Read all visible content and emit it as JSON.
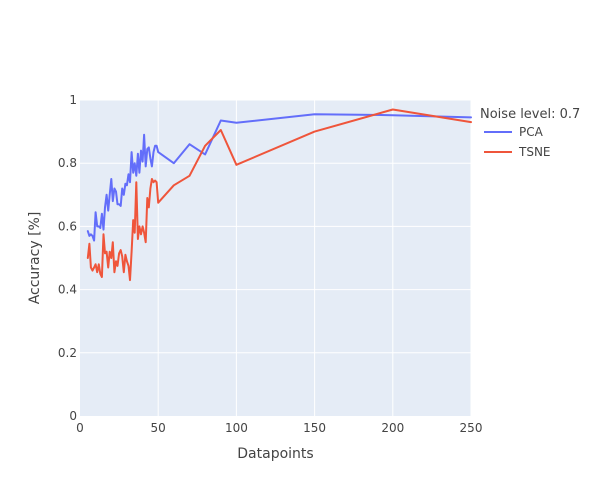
{
  "chart_data": {
    "type": "line",
    "title": "",
    "xlabel": "Datapoints",
    "ylabel": "Accuracy [%]",
    "xlim": [
      0,
      250
    ],
    "ylim": [
      0,
      1
    ],
    "x_ticks": [
      0,
      50,
      100,
      150,
      200,
      250
    ],
    "y_ticks": [
      0,
      0.2,
      0.4,
      0.6,
      0.8,
      1
    ],
    "x_tick_labels": [
      "0",
      "50",
      "100",
      "150",
      "200",
      "250"
    ],
    "y_tick_labels": [
      "0",
      "0.2",
      "0.4",
      "0.6",
      "0.8",
      "1"
    ],
    "grid": true,
    "background_color": "#E5ECF6",
    "legend": {
      "title": "Noise level: 0.7",
      "placement": "right"
    },
    "series": [
      {
        "name": "PCA",
        "color": "#636EFA",
        "x": [
          5,
          6,
          7,
          8,
          9,
          10,
          11,
          12,
          13,
          14,
          15,
          16,
          17,
          18,
          19,
          20,
          21,
          22,
          23,
          24,
          25,
          26,
          27,
          28,
          29,
          30,
          31,
          32,
          33,
          34,
          35,
          36,
          37,
          38,
          39,
          40,
          41,
          42,
          43,
          44,
          45,
          46,
          47,
          48,
          49,
          50,
          60,
          70,
          80,
          90,
          100,
          150,
          200,
          250
        ],
        "y": [
          0.585,
          0.57,
          0.575,
          0.57,
          0.555,
          0.645,
          0.6,
          0.6,
          0.595,
          0.64,
          0.59,
          0.66,
          0.7,
          0.65,
          0.7,
          0.75,
          0.68,
          0.72,
          0.71,
          0.67,
          0.67,
          0.665,
          0.72,
          0.7,
          0.735,
          0.73,
          0.765,
          0.74,
          0.835,
          0.77,
          0.8,
          0.76,
          0.83,
          0.77,
          0.84,
          0.805,
          0.89,
          0.79,
          0.845,
          0.85,
          0.815,
          0.79,
          0.835,
          0.855,
          0.855,
          0.835,
          0.8,
          0.86,
          0.828,
          0.935,
          0.928,
          0.955,
          0.952,
          0.945
        ]
      },
      {
        "name": "TSNE",
        "color": "#EF553B",
        "x": [
          5,
          6,
          7,
          8,
          9,
          10,
          11,
          12,
          13,
          14,
          15,
          16,
          17,
          18,
          19,
          20,
          21,
          22,
          23,
          24,
          25,
          26,
          27,
          28,
          29,
          30,
          31,
          32,
          33,
          34,
          35,
          36,
          37,
          38,
          39,
          40,
          41,
          42,
          43,
          44,
          45,
          46,
          47,
          48,
          49,
          50,
          60,
          70,
          80,
          90,
          100,
          150,
          200,
          250
        ],
        "y": [
          0.5,
          0.545,
          0.47,
          0.46,
          0.47,
          0.48,
          0.455,
          0.48,
          0.45,
          0.44,
          0.575,
          0.515,
          0.52,
          0.47,
          0.52,
          0.5,
          0.55,
          0.455,
          0.49,
          0.475,
          0.515,
          0.525,
          0.505,
          0.455,
          0.51,
          0.49,
          0.475,
          0.43,
          0.52,
          0.62,
          0.58,
          0.74,
          0.56,
          0.6,
          0.575,
          0.6,
          0.58,
          0.55,
          0.69,
          0.66,
          0.72,
          0.75,
          0.74,
          0.745,
          0.74,
          0.675,
          0.73,
          0.76,
          0.855,
          0.905,
          0.795,
          0.9,
          0.97,
          0.93
        ]
      }
    ]
  }
}
